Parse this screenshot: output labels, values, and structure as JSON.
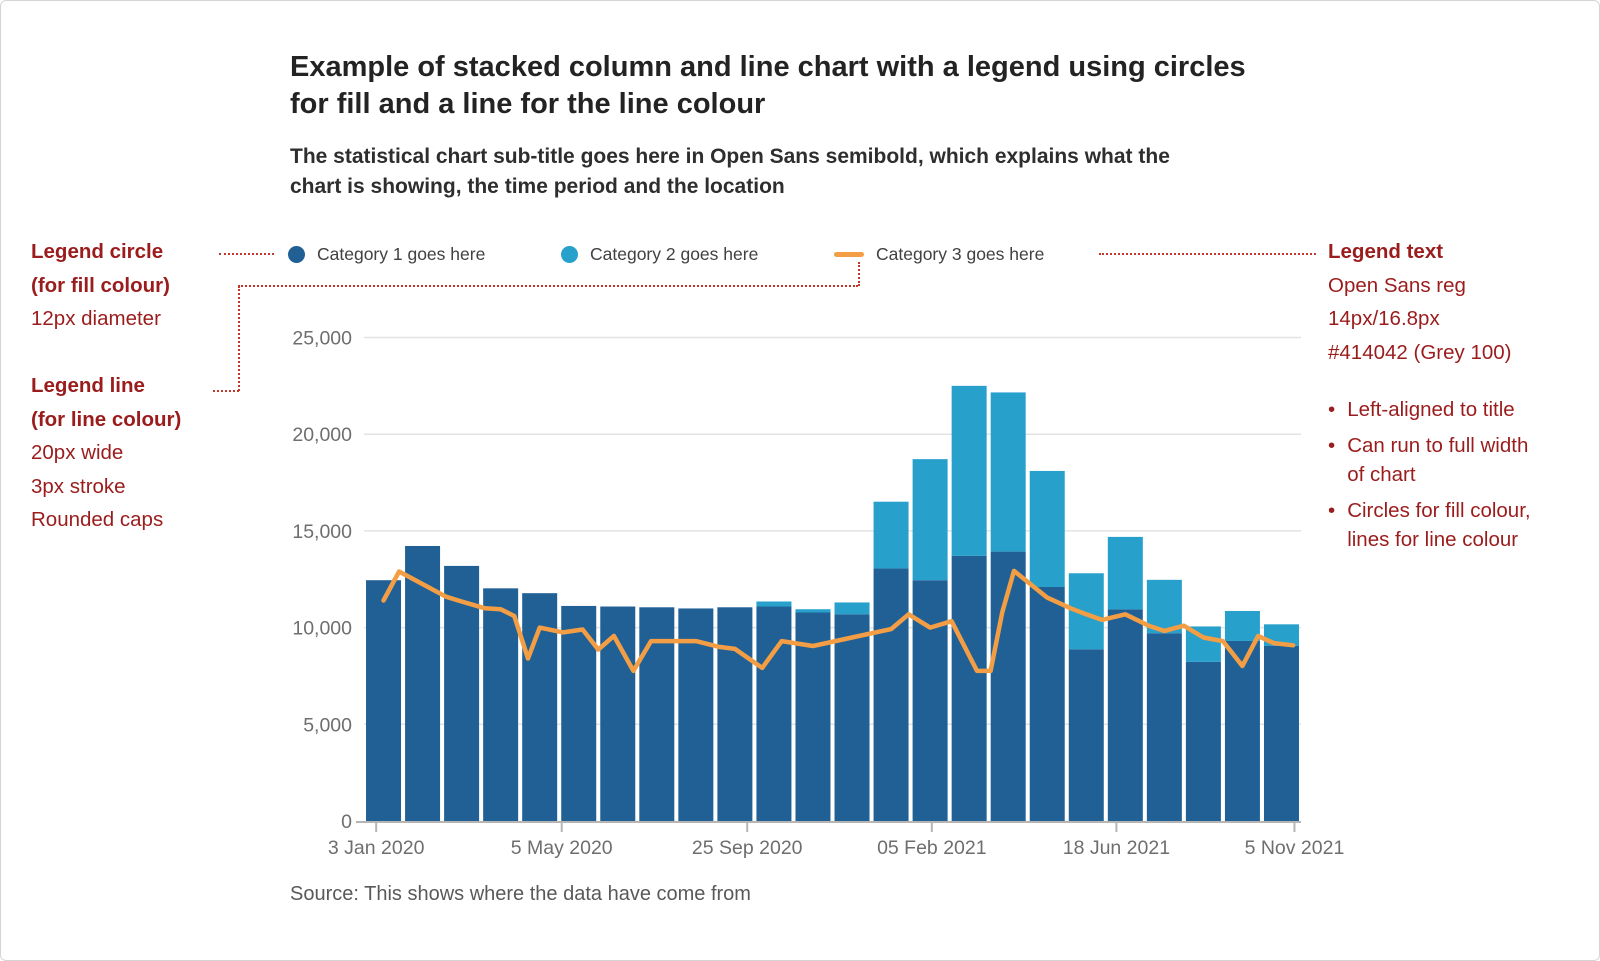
{
  "title_lines": [
    "Example of stacked column and line chart with a legend using circles",
    "for fill and a line for the line colour"
  ],
  "subtitle_lines": [
    "The statistical chart sub-title goes here in Open Sans semibold, which explains what the",
    "chart is showing, the time period and the location"
  ],
  "source": "Source: This shows where the data have come from",
  "colors": {
    "category1": "#206095",
    "category2": "#27A0CC",
    "category3_line": "#F39E44",
    "annotation_red": "#9B1C1C",
    "leader_red": "#C0392B",
    "axis_text": "#6e6e6e",
    "gridline": "#e3e3e3",
    "baseline": "#b5b5b5",
    "legend_text": "#414042"
  },
  "annotations": {
    "left_circle": {
      "title_lines": [
        "Legend circle",
        "(for fill colour)"
      ],
      "body_lines": [
        "12px diameter"
      ]
    },
    "left_line": {
      "title_lines": [
        "Legend line",
        "(for line colour)"
      ],
      "body_lines": [
        "20px wide",
        "3px stroke",
        "Rounded caps"
      ]
    },
    "right": {
      "title": "Legend text",
      "body_lines": [
        "Open Sans reg",
        "14px/16.8px",
        "#414042 (Grey 100)"
      ],
      "bullets": [
        "Left-aligned to title",
        "Can run to full width of chart",
        "Circles for fill colour, lines for line colour"
      ]
    }
  },
  "chart_data": {
    "type": "bar",
    "subtype": "stacked-columns-with-line",
    "title": "Example of stacked column and line chart with a legend using circles for fill and a line for the line colour",
    "xlabel": "",
    "ylabel": "",
    "ylim": [
      0,
      25000
    ],
    "y_tick_labels": [
      "0",
      "5,000",
      "10,000",
      "15,000",
      "20,000",
      "25,000"
    ],
    "y_tick_values": [
      0,
      5000,
      10000,
      15000,
      20000,
      25000
    ],
    "x_tick_labels": [
      "3 Jan 2020",
      "5 May 2020",
      "25 Sep 2020",
      "05 Feb 2021",
      "18 Jun 2021",
      "5 Nov 2021"
    ],
    "x_tick_positions": [
      0.013,
      0.211,
      0.409,
      0.606,
      0.803,
      0.993
    ],
    "grid": "horizontal",
    "legend_position": "top",
    "series": [
      {
        "name": "Category 1 goes here",
        "type": "column",
        "swatch": "circle",
        "color": "#206095",
        "values": [
          12450,
          14220,
          13190,
          12030,
          11780,
          11120,
          11090,
          11050,
          10990,
          11050,
          11090,
          10780,
          10690,
          13060,
          12450,
          13710,
          13930,
          12100,
          8880,
          10950,
          9710,
          8230,
          9310,
          9050
        ]
      },
      {
        "name": "Category 2 goes here",
        "type": "column",
        "swatch": "circle",
        "color": "#27A0CC",
        "values": [
          0,
          0,
          0,
          0,
          0,
          0,
          0,
          0,
          0,
          0,
          260,
          170,
          610,
          3450,
          6260,
          8790,
          8230,
          6000,
          3930,
          3740,
          2760,
          1830,
          1550,
          1120
        ]
      },
      {
        "name": "Category 3 goes here",
        "type": "line",
        "swatch": "line",
        "color": "#F39E44",
        "points": [
          [
            1,
            11400
          ],
          [
            1.4,
            12900
          ],
          [
            2,
            12250
          ],
          [
            2.6,
            11600
          ],
          [
            3,
            11350
          ],
          [
            3.6,
            11000
          ],
          [
            4,
            10950
          ],
          [
            4.35,
            10600
          ],
          [
            4.7,
            8400
          ],
          [
            5,
            10000
          ],
          [
            5.6,
            9750
          ],
          [
            6.1,
            9900
          ],
          [
            6.5,
            8860
          ],
          [
            6.9,
            9570
          ],
          [
            7.4,
            7760
          ],
          [
            7.85,
            9300
          ],
          [
            9,
            9300
          ],
          [
            9.6,
            9000
          ],
          [
            10,
            8900
          ],
          [
            10.7,
            7915
          ],
          [
            11.2,
            9300
          ],
          [
            12,
            9050
          ],
          [
            13,
            9490
          ],
          [
            14,
            9920
          ],
          [
            14.45,
            10690
          ],
          [
            15,
            10000
          ],
          [
            15.55,
            10330
          ],
          [
            16.2,
            7760
          ],
          [
            16.55,
            7760
          ],
          [
            16.85,
            10800
          ],
          [
            17.15,
            12930
          ],
          [
            18,
            11550
          ],
          [
            18.6,
            11000
          ],
          [
            19,
            10690
          ],
          [
            19.4,
            10400
          ],
          [
            20,
            10690
          ],
          [
            20.6,
            10100
          ],
          [
            21,
            9830
          ],
          [
            21.5,
            10100
          ],
          [
            22,
            9490
          ],
          [
            22.5,
            9300
          ],
          [
            23,
            8015
          ],
          [
            23.4,
            9570
          ],
          [
            23.8,
            9200
          ],
          [
            24.3,
            9085
          ]
        ]
      }
    ]
  }
}
